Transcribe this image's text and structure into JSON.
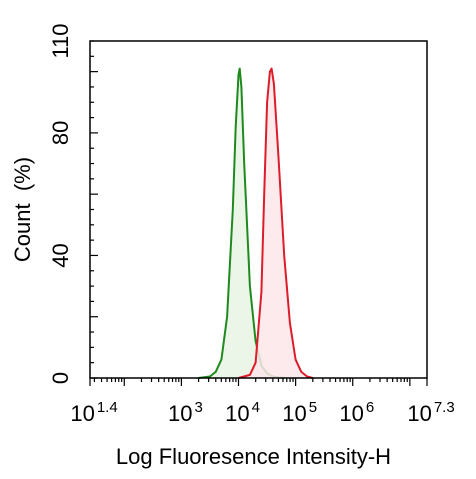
{
  "chart_data": {
    "type": "area",
    "xlabel": "Log Fluoresence Intensity-H",
    "ylabel": "Count  (%)",
    "x_scale": "log10",
    "xlim": [
      1.4,
      7.3
    ],
    "ylim": [
      0,
      110
    ],
    "x_ticks": [
      {
        "base": "10",
        "exp": "1.4",
        "value": 1.4
      },
      {
        "base": "10",
        "exp": "3",
        "value": 3
      },
      {
        "base": "10",
        "exp": "4",
        "value": 4
      },
      {
        "base": "10",
        "exp": "5",
        "value": 5
      },
      {
        "base": "10",
        "exp": "6",
        "value": 6
      },
      {
        "base": "10",
        "exp": "7.3",
        "value": 7.3
      }
    ],
    "y_ticks": [
      {
        "label": "0",
        "value": 0
      },
      {
        "label": "40",
        "value": 40
      },
      {
        "label": "80",
        "value": 80
      },
      {
        "label": "110",
        "value": 110
      }
    ],
    "grid": false,
    "series": [
      {
        "color": "#1e8a1e",
        "fill": "#e7f3e4",
        "x": [
          3.3,
          3.5,
          3.6,
          3.7,
          3.8,
          3.9,
          3.95,
          4.0,
          4.02,
          4.05,
          4.1,
          4.2,
          4.3,
          4.4,
          4.5,
          4.6,
          4.7,
          4.8
        ],
        "y": [
          0,
          0.5,
          2,
          6,
          20,
          55,
          82,
          99,
          101,
          95,
          70,
          30,
          12,
          4,
          1.5,
          0.5,
          0.2,
          0
        ]
      },
      {
        "color": "#dd1c2a",
        "fill": "#fbe6ea",
        "x": [
          4.0,
          4.2,
          4.3,
          4.4,
          4.45,
          4.5,
          4.55,
          4.58,
          4.62,
          4.7,
          4.8,
          4.9,
          5.0,
          5.1,
          5.2,
          5.3
        ],
        "y": [
          0,
          1,
          5,
          28,
          60,
          90,
          100,
          101,
          96,
          72,
          40,
          18,
          6,
          2,
          0.5,
          0
        ]
      }
    ]
  }
}
